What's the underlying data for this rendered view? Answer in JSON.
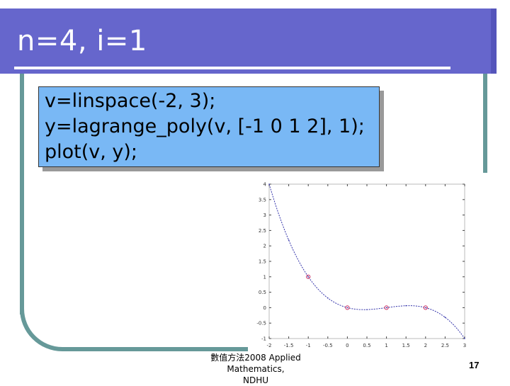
{
  "slide": {
    "title": "n=4, i=1",
    "code_lines": [
      "v=linspace(-2, 3);",
      "y=lagrange_poly(v, [-1 0 1 2], 1);",
      "plot(v, y);"
    ],
    "footer_line1": "數值方法2008 Applied Mathematics,",
    "footer_line2": "NDHU",
    "page_number": "17",
    "colors": {
      "title_bar": "#6666cc",
      "frame": "#669999",
      "code_box": "#79b8f5",
      "curve": "#3333aa",
      "markers": "#cc3366"
    }
  },
  "chart_data": {
    "type": "line",
    "xlim": [
      -2,
      3
    ],
    "ylim": [
      -1,
      4
    ],
    "xticks": [
      "-2",
      "-1.5",
      "-1",
      "-0.5",
      "0",
      "0.5",
      "1",
      "1.5",
      "2",
      "2.5",
      "3"
    ],
    "yticks": [
      "4",
      "3.5",
      "3",
      "2.5",
      "2",
      "1.5",
      "1",
      "0.5",
      "0",
      "-0.5",
      "-1"
    ],
    "series": [
      {
        "x": [
          -2,
          -1.5,
          -1,
          -0.5,
          0,
          0.5,
          1,
          1.5,
          2,
          2.5,
          3
        ],
        "y": [
          4.0,
          2.1875,
          1.0,
          0.3125,
          0.0,
          -0.0625,
          0.0,
          0.0625,
          0.0,
          -0.3125,
          -1.0
        ]
      }
    ],
    "markers": {
      "x": [
        -1,
        0,
        1,
        2
      ],
      "y": [
        1,
        0,
        0,
        0
      ]
    },
    "grid": false
  }
}
